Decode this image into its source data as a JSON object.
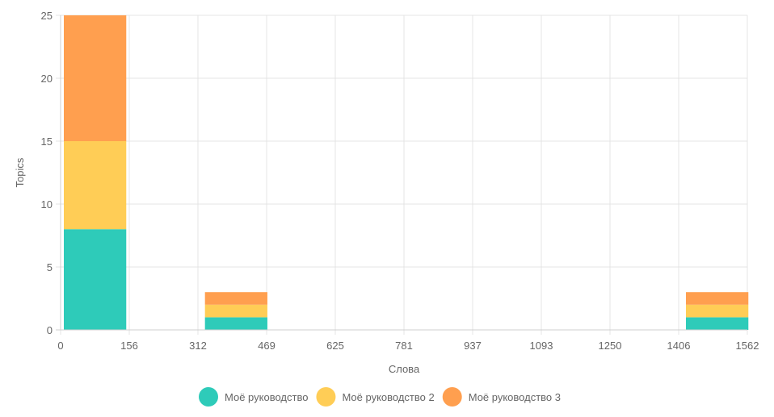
{
  "chart_data": {
    "type": "bar",
    "stacked": true,
    "xlabel": "Слова",
    "ylabel": "Topics",
    "x_ticks": [
      "0",
      "156",
      "312",
      "469",
      "625",
      "781",
      "937",
      "1093",
      "1250",
      "1406",
      "1562"
    ],
    "y_ticks": [
      "0",
      "5",
      "10",
      "15",
      "20",
      "25"
    ],
    "xlim": [
      0,
      1562
    ],
    "ylim": [
      0,
      25
    ],
    "grid": true,
    "legend_position": "bottom",
    "bins": [
      {
        "start": 0,
        "end": 142
      },
      {
        "start": 321,
        "end": 463
      },
      {
        "start": 1415,
        "end": 1557
      }
    ],
    "series": [
      {
        "name": "Моё руководство",
        "color": "#2ecbb9",
        "values": [
          8,
          1,
          1
        ]
      },
      {
        "name": "Моё руководство 2",
        "color": "#ffcd56",
        "values": [
          7,
          1,
          1
        ]
      },
      {
        "name": "Моё руководство 3",
        "color": "#ff9f4f",
        "values": [
          10,
          1,
          1
        ]
      }
    ]
  }
}
